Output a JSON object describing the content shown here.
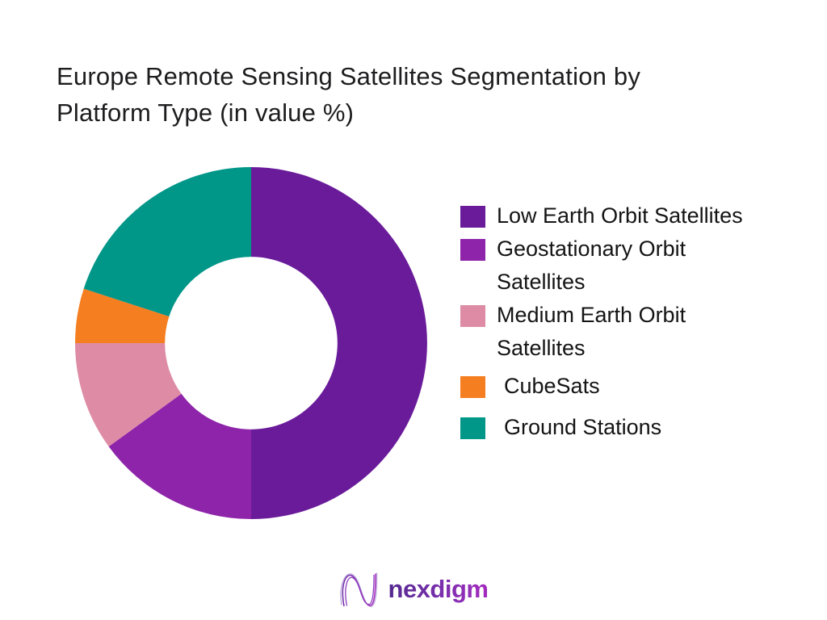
{
  "page": {
    "background": "#ffffff",
    "title_lines": [
      "Europe Remote Sensing Satellites Segmentation by",
      "Platform Type (in value %)"
    ]
  },
  "chart_data": {
    "type": "pie",
    "subtype": "donut",
    "title": "Europe Remote Sensing Satellites Segmentation by Platform Type (in value %)",
    "unit": "%",
    "start_angle_deg": 0,
    "direction": "clockwise",
    "inner_radius_ratio": 0.49,
    "legend_position": "right",
    "data_labels_shown": false,
    "series": [
      {
        "name": "Low Earth Orbit Satellites",
        "value": 50,
        "color": "#6A1B9A"
      },
      {
        "name": "Geostationary Orbit Satellites",
        "value": 15,
        "color": "#8E24AA"
      },
      {
        "name": "Medium Earth Orbit Satellites",
        "value": 10,
        "color": "#DE8CA5"
      },
      {
        "name": "CubeSats",
        "value": 5,
        "color": "#F57E20"
      },
      {
        "name": "Ground Stations",
        "value": 20,
        "color": "#009688"
      }
    ]
  },
  "logo": {
    "text": "nexdigm",
    "mark": "nexdigm-wave-mark",
    "gradient_start": "#55298f",
    "gradient_end": "#a52abf"
  }
}
